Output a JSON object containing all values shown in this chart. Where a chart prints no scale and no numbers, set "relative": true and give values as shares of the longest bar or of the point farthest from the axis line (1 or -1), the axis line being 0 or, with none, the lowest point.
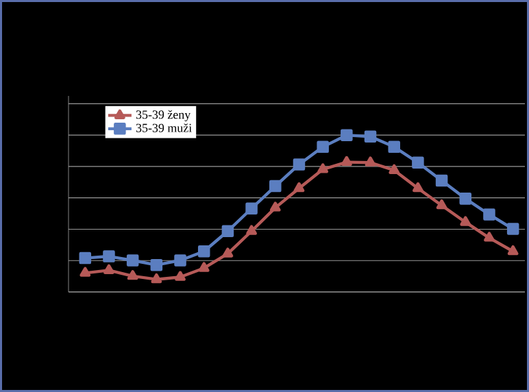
{
  "chart_data": {
    "type": "line",
    "relative": true,
    "grid": "y",
    "legend": "top left",
    "categories": [
      null,
      null,
      null,
      null,
      null,
      null,
      null,
      null,
      null,
      null,
      null,
      null,
      null,
      null,
      null,
      null,
      null,
      null,
      null
    ],
    "series": [
      {
        "name": "35-39 ženy",
        "color": "#b65a58",
        "marker": "triangle",
        "values": [
          0.121,
          0.138,
          0.101,
          0.08,
          0.095,
          0.152,
          0.244,
          0.388,
          0.537,
          0.661,
          0.782,
          0.828,
          0.825,
          0.776,
          0.661,
          0.552,
          0.445,
          0.345,
          0.259
        ]
      },
      {
        "name": "35-39 muži",
        "color": "#5b7ec0",
        "marker": "square",
        "values": [
          0.216,
          0.227,
          0.201,
          0.172,
          0.201,
          0.259,
          0.388,
          0.532,
          0.675,
          0.813,
          0.925,
          1,
          0.991,
          0.925,
          0.825,
          0.71,
          0.595,
          0.494,
          0.402
        ]
      }
    ]
  }
}
